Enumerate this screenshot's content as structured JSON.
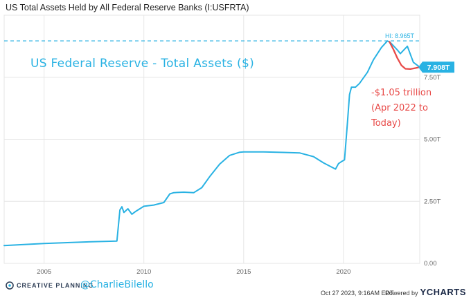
{
  "chart_data": {
    "type": "line",
    "title": "US Total Assets Held by All Federal Reserve Banks (I:USFRTA)",
    "x_ticks": [
      "2005",
      "2010",
      "2015",
      "2020"
    ],
    "y_ticks": [
      "0.00",
      "2.50T",
      "5.00T",
      "7.50T"
    ],
    "ylim": [
      0,
      10
    ],
    "y_unit": "T",
    "grid": true,
    "series": [
      {
        "color": "#29b2e3",
        "x": [
          2003.0,
          2005.0,
          2007.0,
          2008.65,
          2008.8,
          2008.9,
          2009.0,
          2009.2,
          2009.4,
          2009.6,
          2010.0,
          2010.5,
          2011.0,
          2011.3,
          2011.5,
          2012.0,
          2012.5,
          2012.9,
          2013.3,
          2013.8,
          2014.3,
          2014.8,
          2015.0,
          2016.0,
          2017.0,
          2017.8,
          2018.5,
          2019.0,
          2019.6,
          2019.75,
          2019.9,
          2020.05,
          2020.2,
          2020.3,
          2020.4,
          2020.6,
          2020.8,
          2021.2,
          2021.5,
          2021.9,
          2022.2,
          2022.35,
          2022.7,
          2022.85,
          2023.2,
          2023.5,
          2023.82
        ],
        "values": [
          0.72,
          0.8,
          0.86,
          0.9,
          2.15,
          2.28,
          2.05,
          2.2,
          1.98,
          2.1,
          2.3,
          2.35,
          2.45,
          2.8,
          2.85,
          2.87,
          2.85,
          3.05,
          3.5,
          4.0,
          4.35,
          4.48,
          4.49,
          4.49,
          4.47,
          4.45,
          4.3,
          4.05,
          3.8,
          4.02,
          4.1,
          4.17,
          5.7,
          6.8,
          7.1,
          7.1,
          7.25,
          7.7,
          8.2,
          8.7,
          8.965,
          8.9,
          8.6,
          8.45,
          8.75,
          8.1,
          7.908
        ]
      },
      {
        "color": "#e84a48",
        "x": [
          2022.3,
          2022.5,
          2022.7,
          2022.9,
          2023.1,
          2023.35,
          2023.6,
          2023.82
        ],
        "values": [
          8.93,
          8.62,
          8.27,
          7.98,
          7.84,
          7.83,
          7.87,
          7.908
        ]
      }
    ],
    "high_label": "HI: 8.965T",
    "high_value": 8.965,
    "last_value_label": "7.908T",
    "last_value": 7.908
  },
  "annotation": "US Federal Reserve - Total Assets ($)",
  "decline_note": "-$1.05 trillion (Apr 2022 to Today)",
  "footer": {
    "brand": "CREATIVE PLANNING",
    "handle": "@CharlieBilello",
    "timestamp": "Oct 27 2023, 9:16AM EDT.",
    "powered_by": "Powered by",
    "provider": "YCHARTS"
  },
  "colors": {
    "line": "#29b2e3",
    "highlight": "#e84a48",
    "grid": "#e6e6e6"
  }
}
